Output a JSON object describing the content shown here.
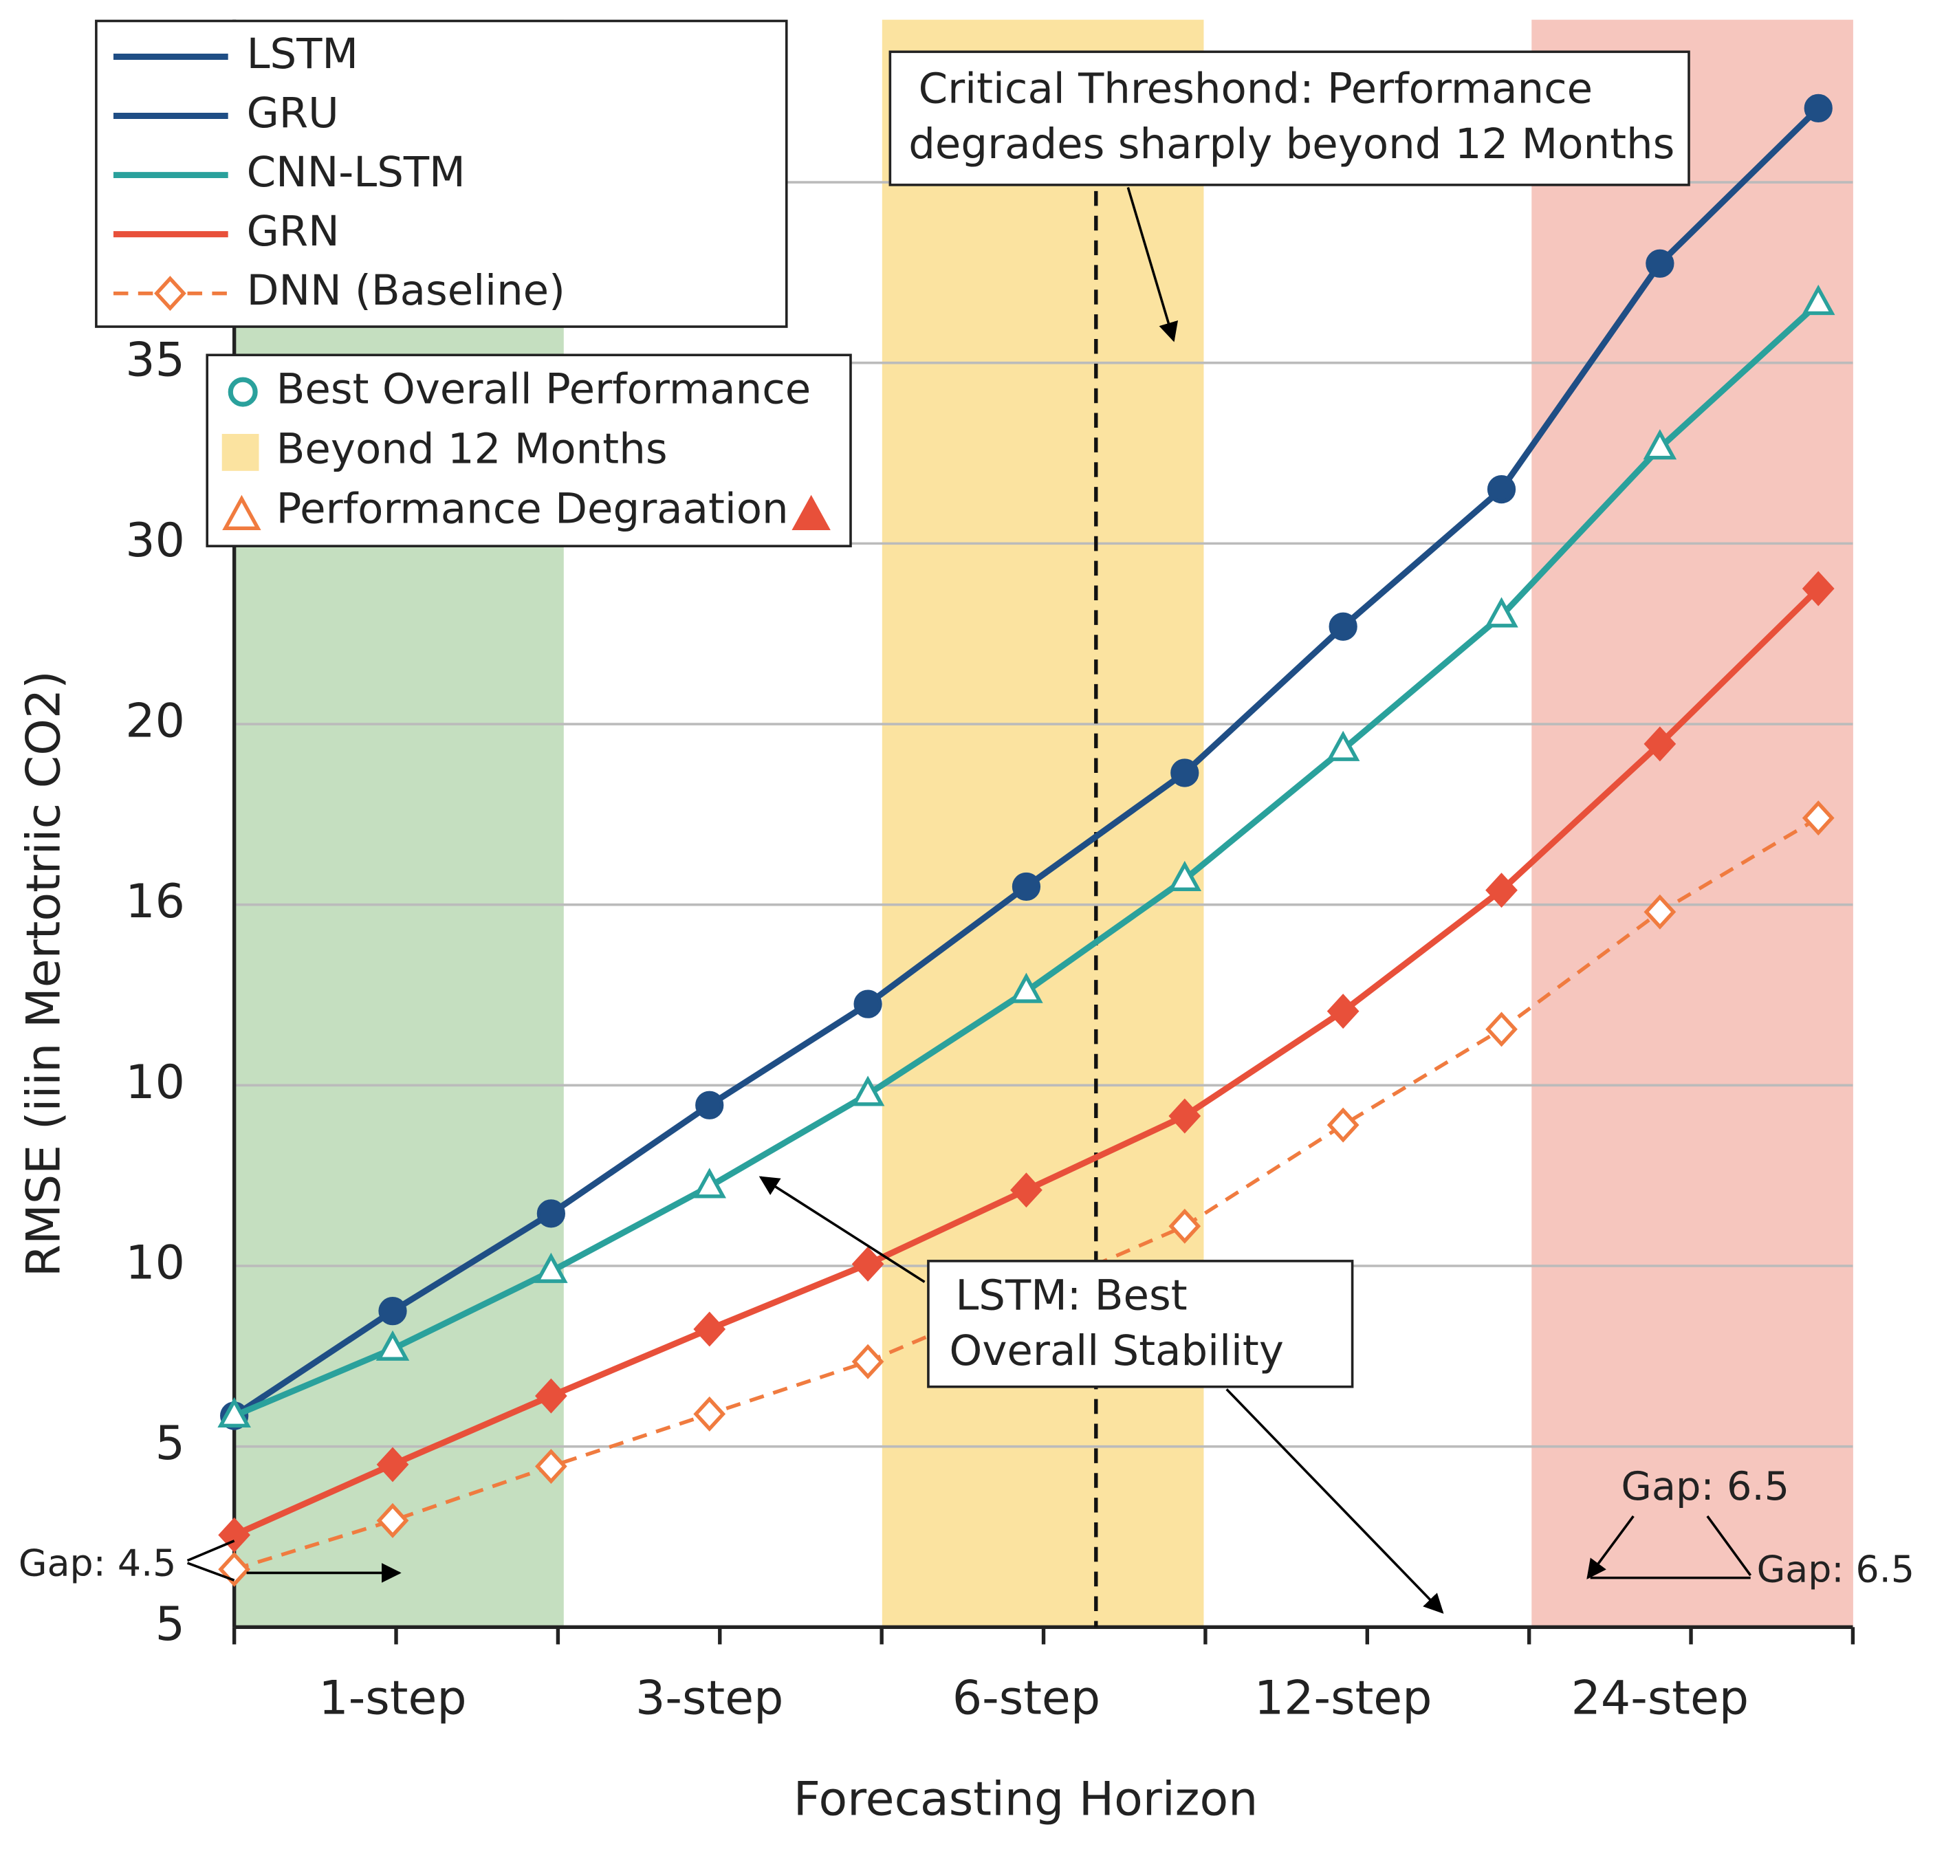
{
  "chart_data": {
    "type": "line",
    "xlabel": "Forecasting Horizon",
    "ylabel": "RMSE (iiin Mertotriic CO2)",
    "categories": [
      null,
      "1-step",
      null,
      "3-step",
      null,
      "6-step",
      null,
      "12-step",
      null,
      "24-step",
      null
    ],
    "series": [
      {
        "name": "LSTM",
        "color": "#1f4e85",
        "marker": "circle",
        "hollow": false,
        "dashed": false,
        "values": [
          1.17,
          1.75,
          2.29,
          2.89,
          3.45,
          4.1,
          4.73,
          5.54,
          6.3,
          7.55,
          8.41
        ]
      },
      {
        "name": "GRU",
        "color": "#1f4e85",
        "marker": "circle",
        "hollow": false,
        "dashed": false,
        "values": [
          null,
          null,
          null,
          null,
          null,
          null,
          null,
          null,
          null,
          null,
          null
        ]
      },
      {
        "name": "CNN-LSTM",
        "color": "#2aa19c",
        "marker": "triangle",
        "hollow": true,
        "dashed": false,
        "values": [
          1.17,
          1.54,
          1.97,
          2.44,
          2.95,
          3.52,
          4.14,
          4.86,
          5.6,
          6.53,
          7.33
        ]
      },
      {
        "name": "GRN",
        "color": "#e8503a",
        "marker": "diamond",
        "hollow": false,
        "dashed": false,
        "values": [
          0.51,
          0.9,
          1.28,
          1.65,
          2.01,
          2.42,
          2.83,
          3.41,
          4.08,
          4.89,
          5.75
        ]
      },
      {
        "name": "DNN (Baseline)",
        "color": "#f07b3f",
        "marker": "diamond",
        "hollow": true,
        "dashed": true,
        "values": [
          0.32,
          0.59,
          0.89,
          1.18,
          1.47,
          1.84,
          2.22,
          2.78,
          3.31,
          3.96,
          4.48
        ]
      }
    ],
    "ylim": [
      0,
      8.9
    ],
    "yticks": [
      {
        "value": 0,
        "label": "5"
      },
      {
        "value": 1,
        "label": "5"
      },
      {
        "value": 2,
        "label": "10"
      },
      {
        "value": 3,
        "label": "10"
      },
      {
        "value": 4,
        "label": "16"
      },
      {
        "value": 5,
        "label": "20"
      },
      {
        "value": 6,
        "label": "30"
      },
      {
        "value": 7,
        "label": "35"
      },
      {
        "value": 8,
        "label": null
      }
    ],
    "grid": true,
    "bands": [
      {
        "x": [
          0,
          2.08
        ],
        "color": "#c5dfc0"
      },
      {
        "x": [
          4.09,
          6.12
        ],
        "color": "#fbe3a0"
      },
      {
        "x": [
          8.19,
          10.22
        ],
        "color": "#f6c6be"
      }
    ],
    "threshold_x": 5.44,
    "legend2": [
      "Best Overall Performance",
      "Beyond 12 Months",
      "Performance Degraation"
    ],
    "annotations": {
      "threshold": [
        "Critical Threshond: Performance",
        "degrades sharply beyond 12 Months"
      ],
      "stability": [
        "LSTM: Best",
        "Overall Stability"
      ],
      "gap_left": "Gap: 4.5",
      "gap_right": [
        "Gap: 6.5",
        "Gap: 6.5"
      ]
    }
  }
}
